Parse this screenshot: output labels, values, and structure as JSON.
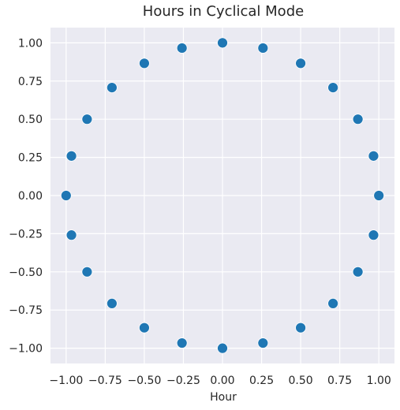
{
  "chart_data": {
    "type": "scatter",
    "title": "Hours in Cyclical Mode",
    "xlabel": "Hour",
    "ylabel": "",
    "xlim": [
      -1.1,
      1.1
    ],
    "ylim": [
      -1.1,
      1.1
    ],
    "grid": true,
    "x_ticks": [
      "-1.00",
      "-0.75",
      "-0.50",
      "-0.25",
      "0.00",
      "0.25",
      "0.50",
      "0.75",
      "1.00"
    ],
    "y_ticks": [
      "1.00",
      "0.75",
      "0.50",
      "0.25",
      "0.00",
      "-0.25",
      "-0.50",
      "-0.75",
      "-1.00"
    ],
    "series": [
      {
        "points": [
          [
            0.0,
            1.0
          ],
          [
            0.259,
            0.966
          ],
          [
            0.5,
            0.866
          ],
          [
            0.707,
            0.707
          ],
          [
            0.866,
            0.5
          ],
          [
            0.966,
            0.259
          ],
          [
            1.0,
            0.0
          ],
          [
            0.966,
            -0.259
          ],
          [
            0.866,
            -0.5
          ],
          [
            0.707,
            -0.707
          ],
          [
            0.5,
            -0.866
          ],
          [
            0.259,
            -0.966
          ],
          [
            0.0,
            -1.0
          ],
          [
            -0.259,
            -0.966
          ],
          [
            -0.5,
            -0.866
          ],
          [
            -0.707,
            -0.707
          ],
          [
            -0.866,
            -0.5
          ],
          [
            -0.966,
            -0.259
          ],
          [
            -1.0,
            0.0
          ],
          [
            -0.966,
            0.259
          ],
          [
            -0.866,
            0.5
          ],
          [
            -0.707,
            0.707
          ],
          [
            -0.5,
            0.866
          ],
          [
            -0.259,
            0.966
          ]
        ]
      }
    ],
    "colors": {
      "background": "#eaeaf2",
      "grid": "#ffffff",
      "point": "#1f77b4",
      "text": "#262626"
    }
  }
}
